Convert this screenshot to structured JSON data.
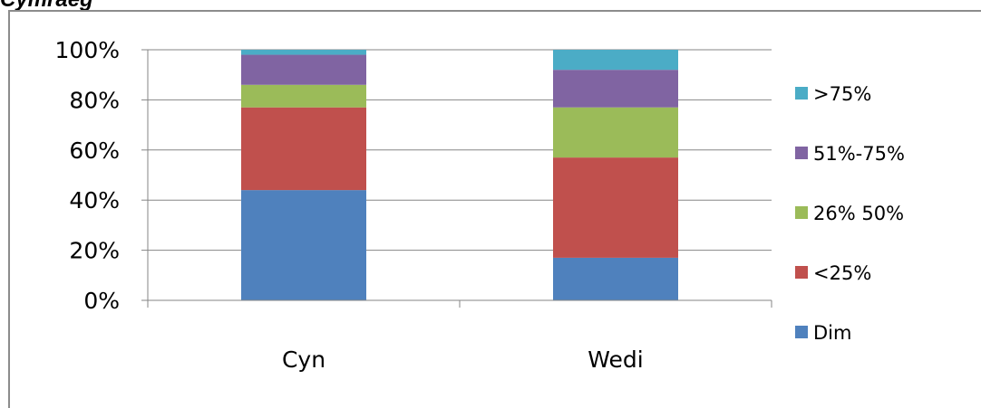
{
  "header": {
    "title": "Cymraeg"
  },
  "chart_data": {
    "type": "bar",
    "stacked": true,
    "percent": true,
    "categories": [
      "Cyn",
      "Wedi"
    ],
    "series": [
      {
        "name": "Dim",
        "color": "#4F81BD",
        "values": [
          44,
          17
        ]
      },
      {
        "name": "<25%",
        "color": "#C0504D",
        "values": [
          33,
          40
        ]
      },
      {
        "name": "26% 50%",
        "color": "#9BBB59",
        "values": [
          9,
          20
        ]
      },
      {
        "name": "51%-75%",
        "color": "#8064A2",
        "values": [
          12,
          15
        ]
      },
      {
        "name": ">75%",
        "color": "#4BACC6",
        "values": [
          2,
          8
        ]
      }
    ],
    "yticks": [
      "0%",
      "20%",
      "40%",
      "60%",
      "80%",
      "100%"
    ],
    "ylim": [
      0,
      100
    ],
    "grid": true,
    "legend": "right"
  }
}
